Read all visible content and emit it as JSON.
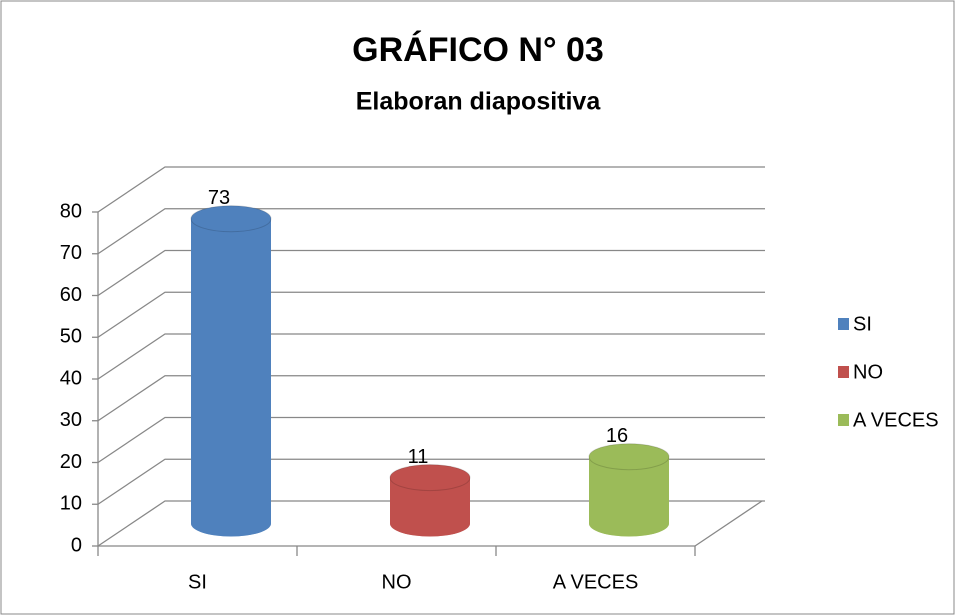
{
  "chart_data": {
    "type": "bar",
    "title": "GRÁFICO N° 03",
    "subtitle": "Elaboran diapositiva",
    "categories": [
      "SI",
      "NO",
      "A VECES"
    ],
    "values": [
      73,
      11,
      16
    ],
    "colors": [
      "#4f81bd",
      "#c0504d",
      "#9bbb59"
    ],
    "ylim": [
      0,
      80
    ],
    "yticks": [
      0,
      10,
      20,
      30,
      40,
      50,
      60,
      70,
      80
    ],
    "grid": true,
    "legend": "right"
  }
}
